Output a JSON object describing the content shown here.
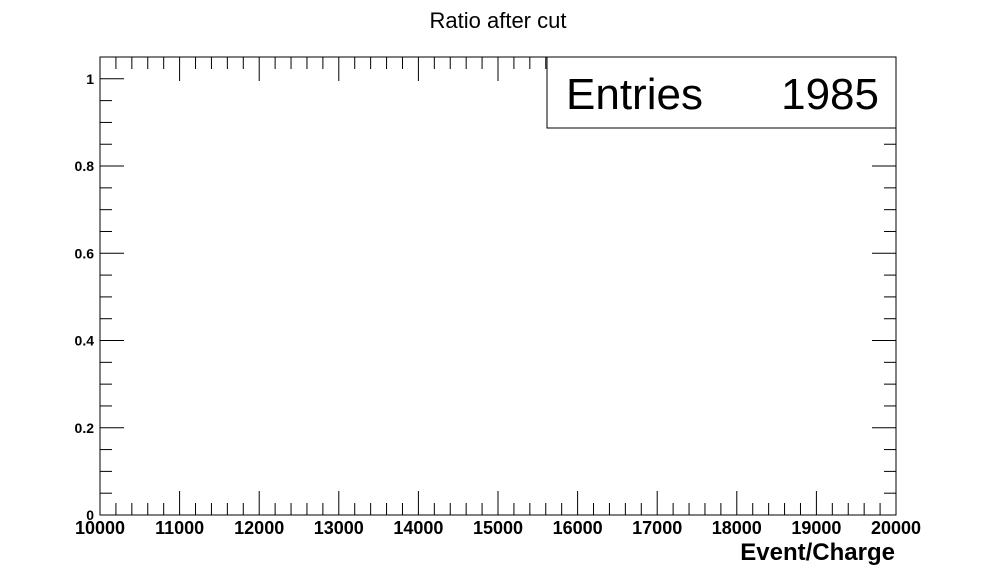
{
  "chart_data": {
    "type": "bar",
    "title": "Ratio after cut",
    "xlabel": "Event/Charge",
    "ylabel": "",
    "xlim": [
      10000,
      20000
    ],
    "ylim": [
      0,
      1.05
    ],
    "x_ticks": [
      "10000",
      "11000",
      "12000",
      "13000",
      "14000",
      "15000",
      "16000",
      "17000",
      "18000",
      "19000",
      "20000"
    ],
    "y_ticks": [
      "0",
      "0.2",
      "0.4",
      "0.6",
      "0.8",
      "1"
    ],
    "grid": false,
    "stats_box": {
      "label": "Entries",
      "value": "1985",
      "placement": "top-right"
    }
  }
}
